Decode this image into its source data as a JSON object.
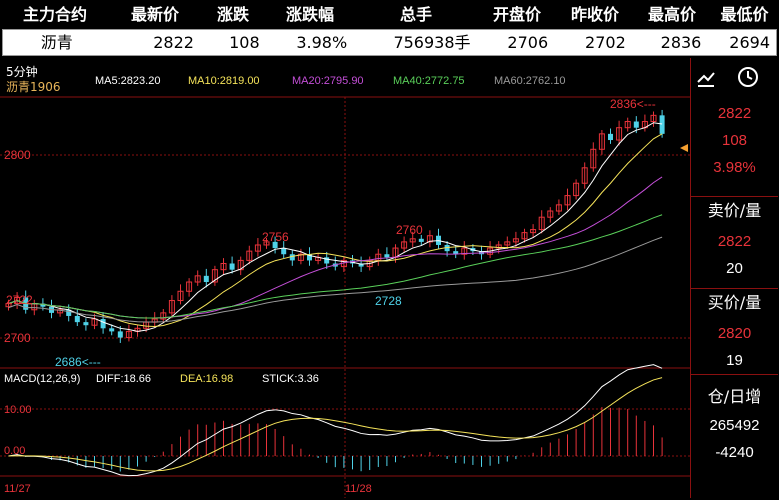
{
  "header": {
    "labels": [
      "主力合约",
      "最新价",
      "涨跌",
      "涨跌幅",
      "总手",
      "开盘价",
      "昨收价",
      "最高价",
      "最低价"
    ],
    "values": [
      "沥青",
      "2822",
      "108",
      "3.98%",
      "756938手",
      "2706",
      "2702",
      "2836",
      "2694"
    ]
  },
  "toolbar": {
    "period": "5分钟",
    "symbol": "沥青1906",
    "ma": [
      {
        "label": "MA5:2823.20",
        "color": "#ffffff"
      },
      {
        "label": "MA10:2819.00",
        "color": "#f5e35a"
      },
      {
        "label": "MA20:2795.90",
        "color": "#c44fd8"
      },
      {
        "label": "MA40:2772.75",
        "color": "#5ad05a"
      },
      {
        "label": "MA60:2762.10",
        "color": "#9a9a9a"
      }
    ],
    "draw_icon": "trend-draw-icon",
    "clock_icon": "clock-icon"
  },
  "price_axis": {
    "top": "2800",
    "bottom": "2700"
  },
  "annotations": {
    "high": "2836<---",
    "low": "2686<---",
    "p2756": "2756",
    "p2760": "2760",
    "p2722": "2722",
    "p2728": "2728"
  },
  "macd": {
    "label": "MACD(12,26,9)",
    "diff": "DIFF:18.66",
    "dea": "DEA:16.98",
    "stick": "STICK:3.36",
    "ytop": "10.00",
    "yzero": "0.00"
  },
  "dates": [
    "11/27",
    "11/28"
  ],
  "side": {
    "price": "2822",
    "change": "108",
    "pct": "3.98%",
    "ask_label": "卖价/量",
    "ask_price": "2822",
    "ask_vol": "20",
    "bid_label": "买价/量",
    "bid_price": "2820",
    "bid_vol": "19",
    "oi_label": "仓/日增",
    "oi": "265492",
    "oi_change": "-4240"
  },
  "colors": {
    "up": "#e8333a",
    "down": "#4fd2e8",
    "ma5": "#ffffff",
    "ma10": "#f5e35a",
    "ma20": "#c44fd8",
    "ma40": "#5ad05a",
    "ma60": "#9a9a9a"
  },
  "chart_data": {
    "type": "candlestick",
    "ylim": [
      2680,
      2842
    ],
    "closes": [
      2712,
      2716,
      2708,
      2712,
      2710,
      2706,
      2708,
      2704,
      2700,
      2698,
      2702,
      2696,
      2694,
      2690,
      2694,
      2696,
      2700,
      2702,
      2706,
      2714,
      2720,
      2726,
      2730,
      2726,
      2734,
      2738,
      2734,
      2740,
      2746,
      2750,
      2752,
      2748,
      2744,
      2740,
      2744,
      2740,
      2742,
      2738,
      2736,
      2740,
      2738,
      2736,
      2740,
      2744,
      2742,
      2748,
      2752,
      2754,
      2752,
      2756,
      2750,
      2746,
      2744,
      2748,
      2746,
      2744,
      2748,
      2750,
      2752,
      2754,
      2758,
      2760,
      2768,
      2772,
      2776,
      2782,
      2790,
      2800,
      2812,
      2822,
      2818,
      2826,
      2830,
      2826,
      2830,
      2834,
      2822
    ],
    "macd_dates": [
      "11/27",
      "11/28"
    ]
  }
}
